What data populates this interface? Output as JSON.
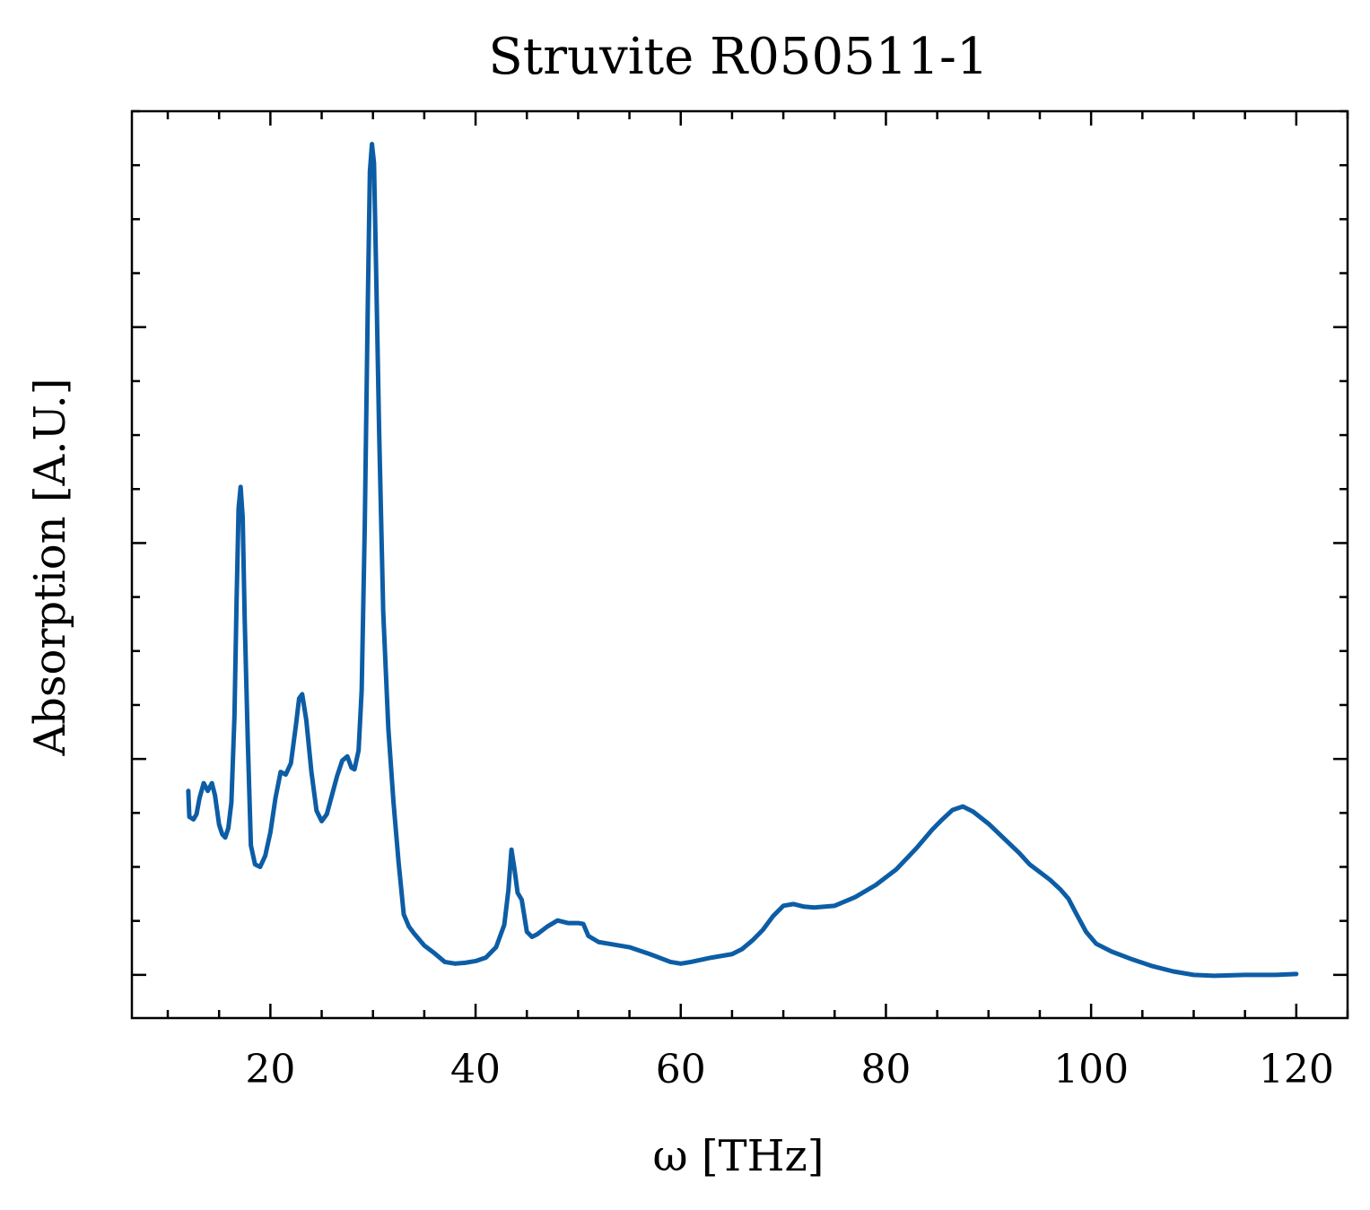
{
  "chart_data": {
    "type": "line",
    "title": "Struvite R050511-1",
    "xlabel": "ω [THz]",
    "ylabel": "Absorption [A.U.]",
    "xlim": [
      6.5,
      125.0
    ],
    "ylim": [
      -0.05,
      1.0
    ],
    "x_ticks": [
      20,
      40,
      60,
      80,
      100,
      120
    ],
    "x_tick_labels": [
      "20",
      "40",
      "60",
      "80",
      "100",
      "120"
    ],
    "x_minor_step": 5,
    "y_major_ticks": [
      0.0,
      0.25,
      0.5,
      0.75
    ],
    "y_minor_step": 0.0625,
    "y_tick_labels_shown": false,
    "grid": false,
    "line_color": "#0c5da5",
    "series": [
      {
        "points": [
          [
            12.0,
            0.213
          ],
          [
            12.1,
            0.183
          ],
          [
            12.5,
            0.18
          ],
          [
            12.8,
            0.186
          ],
          [
            13.1,
            0.205
          ],
          [
            13.5,
            0.222
          ],
          [
            13.9,
            0.213
          ],
          [
            14.3,
            0.222
          ],
          [
            14.6,
            0.208
          ],
          [
            15.0,
            0.174
          ],
          [
            15.3,
            0.163
          ],
          [
            15.6,
            0.159
          ],
          [
            15.9,
            0.17
          ],
          [
            16.2,
            0.2
          ],
          [
            16.5,
            0.3
          ],
          [
            16.7,
            0.43
          ],
          [
            16.9,
            0.54
          ],
          [
            17.1,
            0.565
          ],
          [
            17.3,
            0.53
          ],
          [
            17.5,
            0.41
          ],
          [
            17.8,
            0.27
          ],
          [
            18.1,
            0.15
          ],
          [
            18.5,
            0.128
          ],
          [
            19.0,
            0.125
          ],
          [
            19.5,
            0.138
          ],
          [
            20.0,
            0.165
          ],
          [
            20.5,
            0.205
          ],
          [
            21.0,
            0.235
          ],
          [
            21.5,
            0.232
          ],
          [
            22.0,
            0.245
          ],
          [
            22.5,
            0.29
          ],
          [
            22.8,
            0.32
          ],
          [
            23.1,
            0.325
          ],
          [
            23.5,
            0.295
          ],
          [
            24.0,
            0.235
          ],
          [
            24.5,
            0.19
          ],
          [
            25.0,
            0.178
          ],
          [
            25.5,
            0.186
          ],
          [
            26.0,
            0.208
          ],
          [
            26.5,
            0.23
          ],
          [
            27.0,
            0.248
          ],
          [
            27.5,
            0.253
          ],
          [
            27.9,
            0.24
          ],
          [
            28.2,
            0.238
          ],
          [
            28.6,
            0.26
          ],
          [
            28.9,
            0.33
          ],
          [
            29.2,
            0.52
          ],
          [
            29.5,
            0.78
          ],
          [
            29.7,
            0.93
          ],
          [
            29.9,
            0.962
          ],
          [
            30.1,
            0.94
          ],
          [
            30.3,
            0.82
          ],
          [
            30.6,
            0.63
          ],
          [
            31.0,
            0.42
          ],
          [
            31.5,
            0.285
          ],
          [
            32.0,
            0.2
          ],
          [
            32.5,
            0.13
          ],
          [
            33.0,
            0.07
          ],
          [
            33.5,
            0.056
          ],
          [
            34.0,
            0.048
          ],
          [
            35.0,
            0.034
          ],
          [
            36.0,
            0.025
          ],
          [
            37.0,
            0.015
          ],
          [
            38.0,
            0.013
          ],
          [
            39.0,
            0.014
          ],
          [
            40.0,
            0.016
          ],
          [
            41.0,
            0.02
          ],
          [
            42.0,
            0.032
          ],
          [
            42.8,
            0.058
          ],
          [
            43.2,
            0.098
          ],
          [
            43.5,
            0.145
          ],
          [
            43.8,
            0.122
          ],
          [
            44.1,
            0.095
          ],
          [
            44.5,
            0.087
          ],
          [
            45.0,
            0.05
          ],
          [
            45.5,
            0.044
          ],
          [
            46.0,
            0.047
          ],
          [
            47.0,
            0.056
          ],
          [
            48.0,
            0.063
          ],
          [
            49.0,
            0.06
          ],
          [
            50.0,
            0.06
          ],
          [
            50.5,
            0.059
          ],
          [
            51.0,
            0.045
          ],
          [
            52.0,
            0.038
          ],
          [
            53.0,
            0.036
          ],
          [
            55.0,
            0.032
          ],
          [
            57.0,
            0.024
          ],
          [
            59.0,
            0.015
          ],
          [
            60.0,
            0.013
          ],
          [
            61.0,
            0.015
          ],
          [
            63.0,
            0.02
          ],
          [
            65.0,
            0.024
          ],
          [
            66.0,
            0.03
          ],
          [
            67.0,
            0.04
          ],
          [
            68.0,
            0.052
          ],
          [
            69.0,
            0.068
          ],
          [
            70.0,
            0.08
          ],
          [
            71.0,
            0.082
          ],
          [
            72.0,
            0.079
          ],
          [
            73.0,
            0.078
          ],
          [
            75.0,
            0.08
          ],
          [
            77.0,
            0.09
          ],
          [
            79.0,
            0.104
          ],
          [
            81.0,
            0.122
          ],
          [
            83.0,
            0.147
          ],
          [
            84.5,
            0.168
          ],
          [
            85.5,
            0.18
          ],
          [
            86.5,
            0.191
          ],
          [
            87.5,
            0.195
          ],
          [
            88.5,
            0.189
          ],
          [
            90.0,
            0.175
          ],
          [
            91.5,
            0.158
          ],
          [
            93.0,
            0.141
          ],
          [
            94.0,
            0.128
          ],
          [
            95.0,
            0.119
          ],
          [
            96.0,
            0.11
          ],
          [
            97.0,
            0.099
          ],
          [
            97.8,
            0.088
          ],
          [
            98.5,
            0.072
          ],
          [
            99.5,
            0.05
          ],
          [
            100.5,
            0.036
          ],
          [
            102.0,
            0.027
          ],
          [
            104.0,
            0.018
          ],
          [
            106.0,
            0.01
          ],
          [
            108.0,
            0.004
          ],
          [
            110.0,
            0.0
          ],
          [
            112.0,
            -0.001
          ],
          [
            115.0,
            0.0
          ],
          [
            118.0,
            0.0
          ],
          [
            120.0,
            0.001
          ]
        ]
      }
    ]
  }
}
